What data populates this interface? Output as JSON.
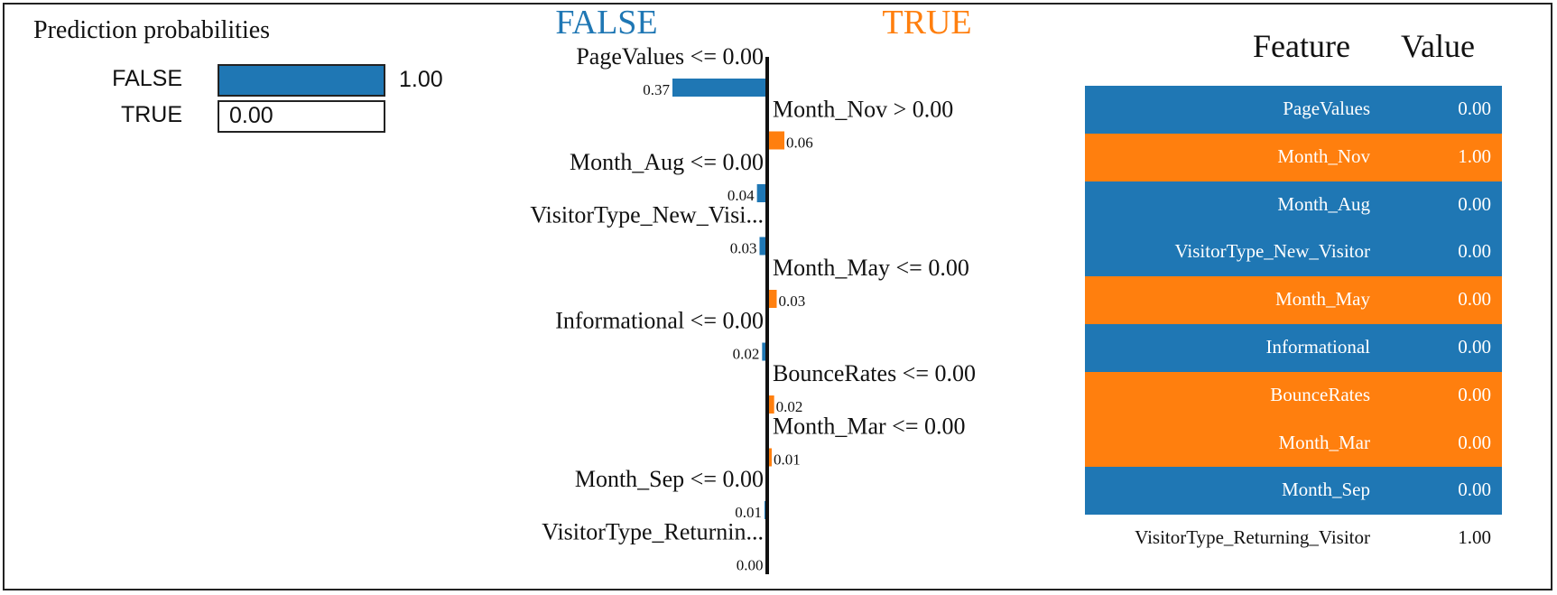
{
  "colors": {
    "false": "#1f77b4",
    "true": "#ff7f0e",
    "axis": "#111111",
    "text": "#111111"
  },
  "prediction_probabilities": {
    "title": "Prediction probabilities",
    "rows": [
      {
        "label": "FALSE",
        "value": 1.0,
        "value_text": "1.00",
        "class": "false"
      },
      {
        "label": "TRUE",
        "value": 0.0,
        "value_text": "0.00",
        "class": "true"
      }
    ]
  },
  "chart_data": {
    "type": "bar",
    "orientation": "horizontal",
    "class_labels": {
      "negative": "FALSE",
      "positive": "TRUE"
    },
    "features": [
      {
        "label": "PageValues <= 0.00",
        "weight": -0.37,
        "value_text": "0.37"
      },
      {
        "label": "Month_Nov > 0.00",
        "weight": 0.06,
        "value_text": "0.06"
      },
      {
        "label": "Month_Aug <= 0.00",
        "weight": -0.04,
        "value_text": "0.04"
      },
      {
        "label": "VisitorType_New_Visi...",
        "weight": -0.03,
        "value_text": "0.03"
      },
      {
        "label": "Month_May <= 0.00",
        "weight": 0.03,
        "value_text": "0.03"
      },
      {
        "label": "Informational <= 0.00",
        "weight": -0.02,
        "value_text": "0.02"
      },
      {
        "label": "BounceRates <= 0.00",
        "weight": 0.02,
        "value_text": "0.02"
      },
      {
        "label": "Month_Mar <= 0.00",
        "weight": 0.01,
        "value_text": "0.01"
      },
      {
        "label": "Month_Sep <= 0.00",
        "weight": -0.01,
        "value_text": "0.01"
      },
      {
        "label": "VisitorType_Returnin...",
        "weight": -0.0,
        "value_text": "0.00"
      }
    ]
  },
  "feature_table": {
    "header_feature": "Feature",
    "header_value": "Value",
    "rows": [
      {
        "feature": "PageValues",
        "value": "0.00",
        "class": "false"
      },
      {
        "feature": "Month_Nov",
        "value": "1.00",
        "class": "true"
      },
      {
        "feature": "Month_Aug",
        "value": "0.00",
        "class": "false"
      },
      {
        "feature": "VisitorType_New_Visitor",
        "value": "0.00",
        "class": "false"
      },
      {
        "feature": "Month_May",
        "value": "0.00",
        "class": "true"
      },
      {
        "feature": "Informational",
        "value": "0.00",
        "class": "false"
      },
      {
        "feature": "BounceRates",
        "value": "0.00",
        "class": "true"
      },
      {
        "feature": "Month_Mar",
        "value": "0.00",
        "class": "true"
      },
      {
        "feature": "Month_Sep",
        "value": "0.00",
        "class": "false"
      },
      {
        "feature": "VisitorType_Returning_Visitor",
        "value": "1.00",
        "class": "none"
      }
    ]
  }
}
